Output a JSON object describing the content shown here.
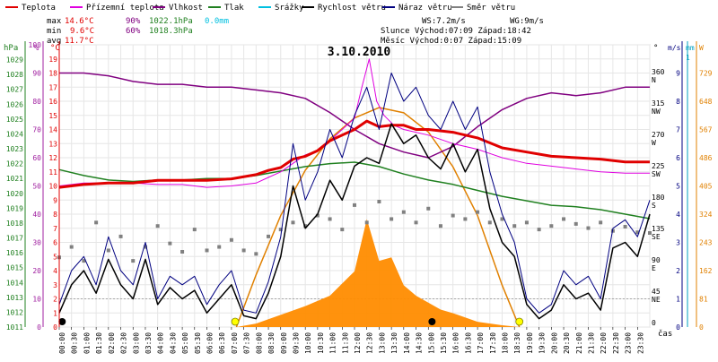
{
  "chart_data": {
    "type": "line",
    "title": "3.10.2010",
    "x_axis": {
      "label": "čas",
      "range_hours": [
        0,
        24
      ],
      "tick_labels": [
        "00:00",
        "00:30",
        "01:00",
        "01:30",
        "02:00",
        "02:30",
        "03:00",
        "03:30",
        "04:00",
        "04:30",
        "05:00",
        "05:30",
        "06:00",
        "06:30",
        "07:00",
        "07:30",
        "08:00",
        "08:30",
        "09:00",
        "09:30",
        "10:00",
        "10:30",
        "11:00",
        "11:30",
        "12:00",
        "12:30",
        "13:00",
        "13:30",
        "14:00",
        "14:30",
        "15:00",
        "15:30",
        "16:00",
        "16:30",
        "17:00",
        "17:30",
        "18:00",
        "18:30",
        "19:00",
        "19:30",
        "20:00",
        "20:30",
        "21:00",
        "21:30",
        "22:00",
        "22:30",
        "23:00",
        "23:30"
      ]
    },
    "axes": {
      "hpa": {
        "label": "hPa",
        "color": "#208020",
        "range": [
          1011,
          1030
        ],
        "ticks": [
          "1011",
          "1012",
          "1013",
          "1014",
          "1015",
          "1016",
          "1017",
          "1018",
          "1019",
          "1020",
          "1021",
          "1022",
          "1023",
          "1024",
          "1025",
          "1026",
          "1027",
          "1028",
          "1029"
        ]
      },
      "percent": {
        "label": "%",
        "color": "#a020a0",
        "range": [
          0,
          100
        ],
        "ticks": [
          "0",
          "10",
          "20",
          "30",
          "40",
          "50",
          "60",
          "70",
          "80",
          "90",
          "100"
        ]
      },
      "celsius": {
        "label": "°C",
        "color": "#e00000",
        "range": [
          0,
          20
        ],
        "ticks": [
          "0",
          "1",
          "2",
          "3",
          "4",
          "5",
          "6",
          "7",
          "8",
          "9",
          "10",
          "11",
          "12",
          "13",
          "14",
          "15",
          "16",
          "17",
          "18",
          "19"
        ]
      },
      "direction": {
        "label": "°",
        "ticks": [
          "0",
          "45 NE",
          "90 E",
          "135 SE",
          "180 S",
          "225 SW",
          "270 W",
          "315 NW",
          "360 N"
        ]
      },
      "wind": {
        "label": "m/s",
        "color": "#000080",
        "range": [
          0,
          10
        ],
        "ticks": [
          "0",
          "1",
          "2",
          "3",
          "4",
          "5",
          "6",
          "7",
          "8",
          "9",
          "10"
        ]
      },
      "rain": {
        "label": "mm",
        "color": "#00a0c0",
        "top_tick": "1"
      },
      "solar": {
        "label": "W",
        "color": "#e08000",
        "range": [
          0,
          810
        ],
        "ticks": [
          "0",
          "81",
          "162",
          "243",
          "324",
          "405",
          "486",
          "567",
          "648",
          "729"
        ]
      }
    },
    "legend": [
      {
        "name": "Teplota",
        "color": "#e00000"
      },
      {
        "name": "Přízemní teplota",
        "color": "#e000e0"
      },
      {
        "name": "Vlhkost",
        "color": "#800080"
      },
      {
        "name": "Tlak",
        "color": "#208020"
      },
      {
        "name": "Srážky",
        "color": "#00c0e0"
      },
      {
        "name": "Rychlost větru",
        "color": "#000000"
      },
      {
        "name": "Náraz větru",
        "color": "#000080"
      },
      {
        "name": "Směr větru",
        "color": "#808080"
      }
    ],
    "stats": {
      "max_label": "max",
      "max_temp": "14.6°C",
      "max_hum": "90%",
      "max_press": "1022.1hPa",
      "max_rain": "0.0mm",
      "min_label": "min",
      "min_temp": "9.6°C",
      "min_hum": "60%",
      "min_press": "1018.3hPa",
      "avg_label": "avg",
      "avg_temp": "11.7°C",
      "ws": "WS:7.2m/s",
      "wg": "WG:9m/s",
      "sun": "Slunce Východ:07:09  Západ:18:42",
      "moon": "Měsíc  Východ:0:07  Západ:15:09"
    },
    "series": {
      "temperature_c": {
        "x": [
          0,
          1,
          2,
          3,
          4,
          5,
          6,
          7,
          8,
          8.5,
          9,
          9.5,
          10,
          10.5,
          11,
          11.5,
          12,
          12.5,
          13,
          13.5,
          14,
          14.5,
          15,
          16,
          17,
          18,
          19,
          20,
          21,
          22,
          23,
          24
        ],
        "y": [
          9.9,
          10.1,
          10.2,
          10.2,
          10.4,
          10.4,
          10.4,
          10.5,
          10.8,
          11.1,
          11.3,
          11.9,
          12.1,
          12.5,
          13.2,
          13.6,
          14.0,
          14.6,
          14.2,
          14.3,
          14.3,
          14.0,
          14.0,
          13.8,
          13.4,
          12.7,
          12.4,
          12.1,
          12.0,
          11.9,
          11.7,
          11.7
        ]
      },
      "ground_temp_c": {
        "x": [
          0,
          1,
          2,
          3,
          4,
          5,
          6,
          7,
          8,
          8.5,
          9,
          9.5,
          10,
          10.5,
          11,
          11.5,
          12,
          12.3,
          12.6,
          12.9,
          13.2,
          13.6,
          14,
          15,
          16,
          17,
          17.5,
          18,
          19,
          20,
          21,
          22,
          23,
          24
        ],
        "y": [
          10.0,
          10.2,
          10.2,
          10.2,
          10.1,
          10.1,
          9.9,
          10.0,
          10.2,
          10.6,
          11.0,
          11.6,
          12.2,
          12.5,
          13.2,
          14.0,
          14.8,
          17.0,
          19.0,
          16.0,
          15.0,
          14.3,
          14.0,
          13.6,
          13.0,
          12.6,
          12.3,
          12.0,
          11.6,
          11.4,
          11.2,
          11.0,
          10.9,
          10.9
        ]
      },
      "humidity_pct": {
        "x": [
          0,
          1,
          2,
          3,
          4,
          5,
          6,
          7,
          8,
          9,
          10,
          11,
          12,
          13,
          14,
          15,
          16,
          17,
          18,
          19,
          20,
          21,
          22,
          23,
          24
        ],
        "y": [
          90,
          90,
          89,
          87,
          86,
          86,
          85,
          85,
          84,
          83,
          81,
          76,
          70,
          65,
          62,
          60,
          64,
          71,
          77,
          81,
          83,
          82,
          83,
          85,
          85
        ]
      },
      "pressure_hpa": {
        "x": [
          0,
          1,
          2,
          3,
          4,
          5,
          6,
          7,
          8,
          9,
          10,
          11,
          12,
          13,
          14,
          15,
          16,
          17,
          18,
          19,
          20,
          21,
          22,
          23,
          24
        ],
        "y": [
          1021.6,
          1021.2,
          1020.9,
          1020.8,
          1020.9,
          1020.9,
          1021.0,
          1021.0,
          1021.2,
          1021.5,
          1021.8,
          1022.0,
          1022.1,
          1021.8,
          1021.3,
          1020.9,
          1020.6,
          1020.2,
          1019.8,
          1019.5,
          1019.2,
          1019.1,
          1018.9,
          1018.6,
          1018.3
        ]
      },
      "solar_w": {
        "x": [
          7.2,
          8,
          9,
          10,
          11,
          12,
          12.5,
          13,
          13.5,
          14,
          14.5,
          15,
          15.5,
          16,
          17,
          18,
          18.7
        ],
        "y": [
          0,
          10,
          35,
          60,
          90,
          160,
          310,
          190,
          200,
          120,
          90,
          70,
          50,
          40,
          15,
          5,
          0
        ]
      },
      "solar_theoretical_w": {
        "x": [
          7.2,
          8,
          9,
          10,
          11,
          12,
          13,
          14,
          15,
          16,
          17,
          18,
          18.7
        ],
        "y": [
          0,
          150,
          320,
          450,
          540,
          600,
          630,
          615,
          560,
          460,
          320,
          120,
          0
        ]
      },
      "wind_speed_ms": {
        "x": [
          0,
          0.5,
          1,
          1.5,
          2,
          2.5,
          3,
          3.5,
          4,
          4.5,
          5,
          5.5,
          6,
          6.5,
          7,
          7.5,
          8,
          8.5,
          9,
          9.5,
          10,
          10.5,
          11,
          11.5,
          12,
          12.5,
          13,
          13.5,
          14,
          14.5,
          15,
          15.5,
          16,
          16.5,
          17,
          17.5,
          18,
          18.5,
          19,
          19.5,
          20,
          20.5,
          21,
          21.5,
          22,
          22.5,
          23,
          23.5,
          24
        ],
        "y": [
          0.5,
          1.5,
          2.0,
          1.2,
          2.4,
          1.5,
          1.0,
          2.4,
          0.8,
          1.4,
          1.0,
          1.3,
          0.5,
          1.0,
          1.5,
          0.4,
          0.3,
          1.2,
          2.5,
          5.0,
          3.5,
          4.0,
          5.2,
          4.5,
          5.7,
          6.0,
          5.8,
          7.2,
          6.5,
          6.8,
          6.0,
          5.6,
          6.5,
          5.5,
          6.3,
          4.2,
          3.0,
          2.5,
          0.8,
          0.3,
          0.6,
          1.5,
          1.0,
          1.2,
          0.6,
          2.8,
          3.0,
          2.5,
          4.0
        ]
      },
      "wind_gust_ms": {
        "x": [
          0,
          0.5,
          1,
          1.5,
          2,
          2.5,
          3,
          3.5,
          4,
          4.5,
          5,
          5.5,
          6,
          6.5,
          7,
          7.5,
          8,
          8.5,
          9,
          9.5,
          10,
          10.5,
          11,
          11.5,
          12,
          12.5,
          13,
          13.5,
          14,
          14.5,
          15,
          15.5,
          16,
          16.5,
          17,
          17.5,
          18,
          18.5,
          19,
          19.5,
          20,
          20.5,
          21,
          21.5,
          22,
          22.5,
          23,
          23.5,
          24
        ],
        "y": [
          0.8,
          2.0,
          2.5,
          1.5,
          3.2,
          2.0,
          1.5,
          3.0,
          1.0,
          1.8,
          1.5,
          1.8,
          0.8,
          1.5,
          2.0,
          0.6,
          0.5,
          1.6,
          3.2,
          6.5,
          4.5,
          5.5,
          7.0,
          6.0,
          7.5,
          8.5,
          7.0,
          9.0,
          8.0,
          8.5,
          7.5,
          7.0,
          8.0,
          7.0,
          7.8,
          5.5,
          4.0,
          3.0,
          1.0,
          0.5,
          0.8,
          2.0,
          1.5,
          1.8,
          1.0,
          3.5,
          3.8,
          3.2,
          4.5
        ]
      },
      "wind_dir_deg": {
        "x": [
          0,
          0.5,
          1,
          1.5,
          2,
          2.5,
          3,
          3.5,
          4,
          4.5,
          5,
          5.5,
          6,
          6.5,
          7,
          7.5,
          8,
          8.5,
          9,
          9.5,
          10,
          10.5,
          11,
          11.5,
          12,
          12.5,
          13,
          13.5,
          14,
          14.5,
          15,
          15.5,
          16,
          16.5,
          17,
          17.5,
          18,
          18.5,
          19,
          19.5,
          20,
          20.5,
          21,
          21.5,
          22,
          22.5,
          23,
          23.5,
          24
        ],
        "y": [
          100,
          115,
          95,
          150,
          110,
          130,
          95,
          115,
          145,
          120,
          108,
          140,
          110,
          115,
          125,
          110,
          105,
          130,
          140,
          150,
          145,
          160,
          155,
          140,
          175,
          150,
          180,
          155,
          165,
          150,
          170,
          145,
          160,
          155,
          165,
          150,
          155,
          145,
          150,
          140,
          145,
          155,
          148,
          142,
          150,
          138,
          144,
          136,
          135
        ]
      }
    },
    "events": {
      "sunrise_hour": 7.15,
      "sunset_hour": 18.7,
      "moonrise_hour": 0.12,
      "moonset_hour": 15.15
    }
  }
}
